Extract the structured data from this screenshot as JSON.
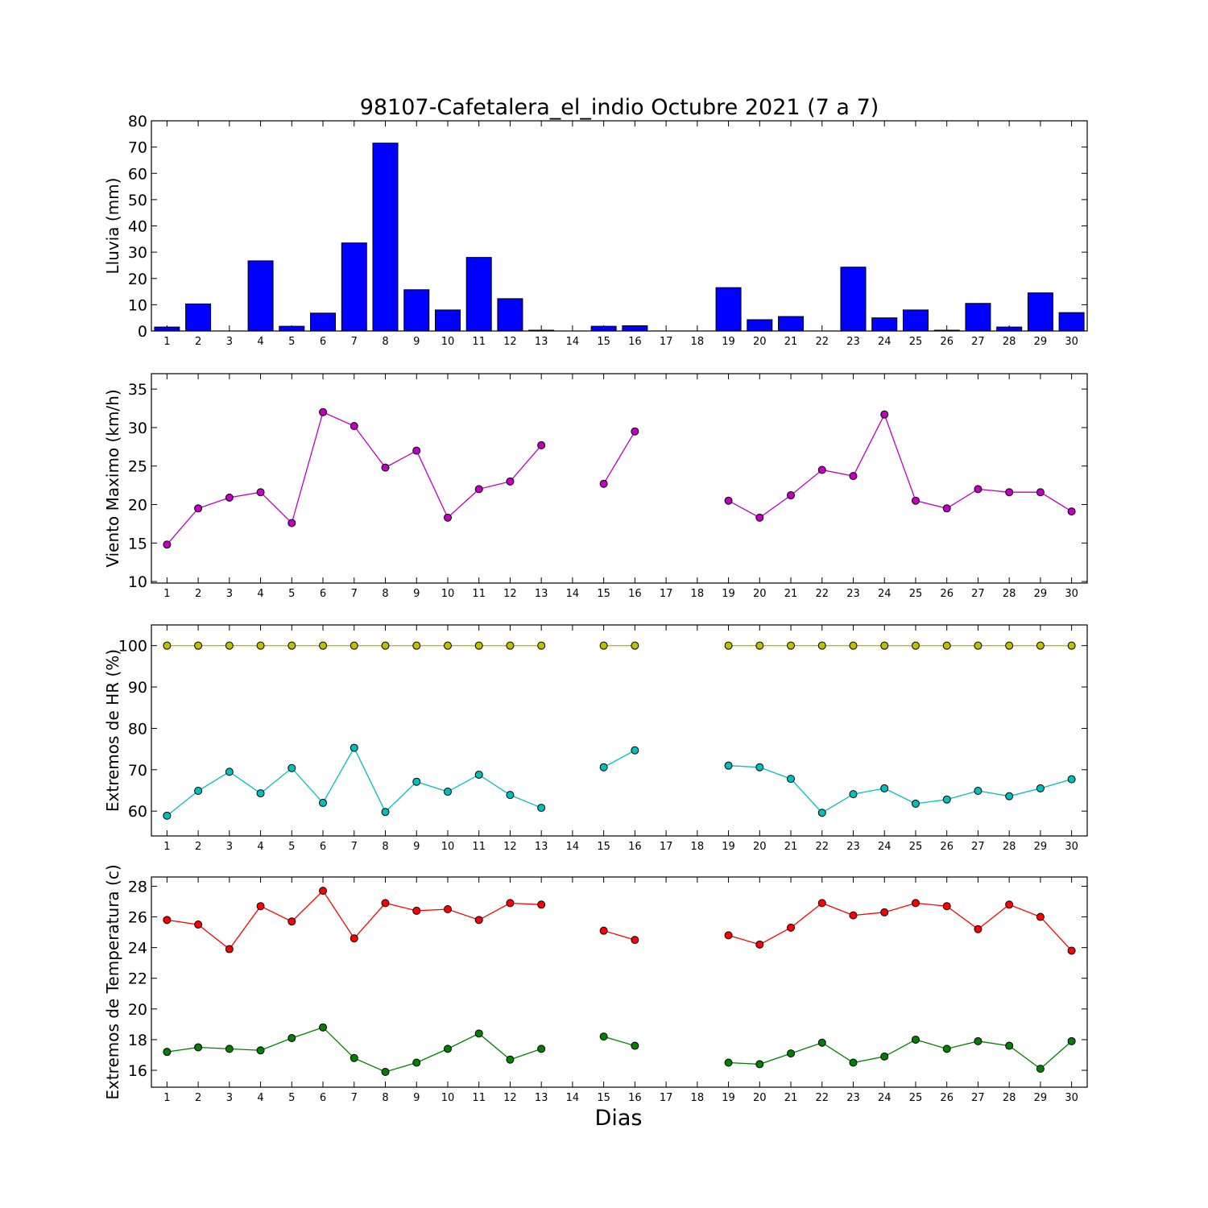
{
  "title": "98107-Cafetalera_el_indio Octubre 2021  (7 a 7)",
  "xlabel": "Dias",
  "chart_data": [
    {
      "type": "bar",
      "ylabel": "Lluvia (mm)",
      "ylim": [
        0,
        80
      ],
      "yticks": [
        0,
        10,
        20,
        30,
        40,
        50,
        60,
        70,
        80
      ],
      "categories": [
        "1",
        "2",
        "3",
        "4",
        "5",
        "6",
        "7",
        "8",
        "9",
        "10",
        "11",
        "12",
        "13",
        "14",
        "15",
        "16",
        "17",
        "18",
        "19",
        "20",
        "21",
        "22",
        "23",
        "24",
        "25",
        "26",
        "27",
        "28",
        "29",
        "30"
      ],
      "series": [
        {
          "color": "#0000ff",
          "values": [
            1.5,
            10.3,
            0,
            26.7,
            1.8,
            6.8,
            33.5,
            71.5,
            15.7,
            8.0,
            28.0,
            12.3,
            0.3,
            0,
            1.8,
            2.0,
            0,
            0,
            16.5,
            4.3,
            5.5,
            0,
            24.3,
            5.0,
            8.0,
            0.3,
            10.5,
            1.5,
            14.5,
            7.0
          ]
        }
      ]
    },
    {
      "type": "line",
      "ylabel": "Viento Maximo (km/h)",
      "ylim": [
        9.8,
        37
      ],
      "yticks": [
        10,
        15,
        20,
        25,
        30,
        35
      ],
      "x": [
        1,
        2,
        3,
        4,
        5,
        6,
        7,
        8,
        9,
        10,
        11,
        12,
        13,
        14,
        15,
        16,
        17,
        18,
        19,
        20,
        21,
        22,
        23,
        24,
        25,
        26,
        27,
        28,
        29,
        30
      ],
      "series": [
        {
          "color": "#bf00bf",
          "values": [
            14.8,
            19.5,
            20.9,
            21.6,
            17.6,
            32.0,
            30.2,
            24.8,
            27.0,
            18.3,
            22.0,
            23.0,
            27.7,
            null,
            22.7,
            29.5,
            null,
            null,
            20.5,
            18.3,
            21.2,
            24.5,
            23.7,
            31.7,
            20.5,
            19.5,
            22.0,
            21.6,
            21.6,
            19.1
          ]
        }
      ]
    },
    {
      "type": "line",
      "ylabel": "Extremos de HR (%)",
      "ylim": [
        54,
        105
      ],
      "yticks": [
        60,
        70,
        80,
        90,
        100
      ],
      "x": [
        1,
        2,
        3,
        4,
        5,
        6,
        7,
        8,
        9,
        10,
        11,
        12,
        13,
        14,
        15,
        16,
        17,
        18,
        19,
        20,
        21,
        22,
        23,
        24,
        25,
        26,
        27,
        28,
        29,
        30
      ],
      "series": [
        {
          "color": "#bfbf00",
          "values": [
            100,
            100,
            100,
            100,
            100,
            100,
            100,
            100,
            100,
            100,
            100,
            100,
            100,
            null,
            100,
            100,
            null,
            null,
            100,
            100,
            100,
            100,
            100,
            100,
            100,
            100,
            100,
            100,
            100,
            100
          ]
        },
        {
          "color": "#00bfbf",
          "values": [
            58.9,
            64.9,
            69.5,
            64.3,
            70.4,
            62.0,
            75.3,
            59.8,
            67.1,
            64.7,
            68.8,
            63.9,
            60.8,
            null,
            70.6,
            74.7,
            null,
            null,
            71.0,
            70.6,
            67.8,
            59.6,
            64.1,
            65.5,
            61.8,
            62.8,
            64.9,
            63.6,
            65.5,
            67.7
          ]
        }
      ]
    },
    {
      "type": "line",
      "ylabel": "Extremos de Temperatura (c)",
      "ylim": [
        14.9,
        28.6
      ],
      "yticks": [
        16,
        18,
        20,
        22,
        24,
        26,
        28
      ],
      "x": [
        1,
        2,
        3,
        4,
        5,
        6,
        7,
        8,
        9,
        10,
        11,
        12,
        13,
        14,
        15,
        16,
        17,
        18,
        19,
        20,
        21,
        22,
        23,
        24,
        25,
        26,
        27,
        28,
        29,
        30
      ],
      "series": [
        {
          "color": "#ff0000",
          "values": [
            25.8,
            25.5,
            23.9,
            26.7,
            25.7,
            27.7,
            24.6,
            26.9,
            26.4,
            26.5,
            25.8,
            26.9,
            26.8,
            null,
            25.1,
            24.5,
            null,
            null,
            24.8,
            24.2,
            25.3,
            26.9,
            26.1,
            26.3,
            26.9,
            26.7,
            25.2,
            26.8,
            26.0,
            23.8
          ]
        },
        {
          "color": "#008000",
          "values": [
            17.2,
            17.5,
            17.4,
            17.3,
            18.1,
            18.8,
            16.8,
            15.9,
            16.5,
            17.4,
            18.4,
            16.7,
            17.4,
            null,
            18.2,
            17.6,
            null,
            null,
            16.5,
            16.4,
            17.1,
            17.8,
            16.5,
            16.9,
            18.0,
            17.4,
            17.9,
            17.6,
            16.1,
            17.9
          ]
        }
      ]
    }
  ]
}
